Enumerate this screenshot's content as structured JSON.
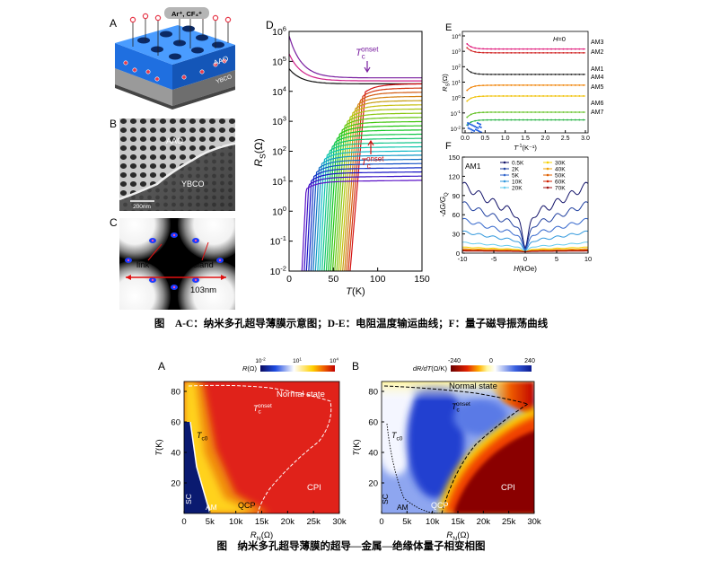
{
  "figure1": {
    "panel_a": {
      "label": "A",
      "ions": "Ar⁺, CF₄⁺",
      "aao": "AAO",
      "ybco": "YBCO"
    },
    "panel_b": {
      "label": "B",
      "aao": "AAO",
      "ybco": "YBCO",
      "scale_bar": "200nm"
    },
    "panel_c": {
      "label": "C",
      "link": "link",
      "island": "island",
      "period": "103nm"
    },
    "panel_d": {
      "label": "D",
      "y_ticks": [
        {
          "base": "10",
          "exp": "6"
        },
        {
          "base": "10",
          "exp": "5"
        },
        {
          "base": "10",
          "exp": "4"
        },
        {
          "base": "10",
          "exp": "3"
        },
        {
          "base": "10",
          "exp": "2"
        },
        {
          "base": "10",
          "exp": "1"
        },
        {
          "base": "10",
          "exp": "0"
        },
        {
          "base": "10",
          "exp": "-1"
        },
        {
          "base": "10",
          "exp": "-2"
        }
      ],
      "x_ticks": [
        "0",
        "50",
        "100",
        "150"
      ],
      "x_label": {
        "main": "T",
        "unit": "(K)"
      },
      "y_label": {
        "main": "R",
        "sub": "S",
        "unit": "(Ω)"
      },
      "tc_onset_upper": {
        "main": "T",
        "sub": "c",
        "sup": "onset"
      },
      "tc_onset_lower": {
        "main": "T",
        "sub": "c",
        "sup": "onset"
      }
    },
    "panel_e": {
      "label": "E",
      "field": {
        "main": "H",
        "unit": "=0"
      },
      "samples": [
        "AM3",
        "AM2",
        "AM1",
        "AM4",
        "AM5",
        "AM6",
        "AM7"
      ],
      "y_ticks": [
        {
          "base": "10",
          "exp": "4"
        },
        {
          "base": "10",
          "exp": "3"
        },
        {
          "base": "10",
          "exp": "2"
        },
        {
          "base": "10",
          "exp": "1"
        },
        {
          "base": "10",
          "exp": "0"
        },
        {
          "base": "10",
          "exp": "-1"
        },
        {
          "base": "10",
          "exp": "-2"
        }
      ],
      "x_ticks": [
        "0.0",
        "0.5",
        "1.0",
        "1.5",
        "2.0",
        "2.5",
        "3.0"
      ],
      "x_label": {
        "main": "T",
        "sup": "-1",
        "unit": "(K⁻¹)"
      },
      "y_label": {
        "main": "R",
        "sub": "S",
        "unit": "(Ω)"
      }
    },
    "panel_f": {
      "label": "F",
      "sample": "AM1",
      "legend": [
        "0.5K",
        "2K",
        "5K",
        "10K",
        "20K",
        "30K",
        "40K",
        "50K",
        "60K",
        "70K"
      ],
      "y_ticks": [
        "0",
        "30",
        "60",
        "90",
        "120",
        "150"
      ],
      "x_ticks": [
        "-10",
        "-5",
        "0",
        "5",
        "10"
      ],
      "x_label": {
        "main": "H",
        "unit": "(kOe)"
      },
      "y_label": {
        "main": "-ΔG/G",
        "sub": "Q"
      }
    }
  },
  "caption1": "图　A-C：纳米多孔超导薄膜示意图；D-E：电阻温度输运曲线；F：量子磁导振荡曲线",
  "figure2": {
    "panel_a": {
      "label": "A",
      "colorbar_title": {
        "main": "R",
        "unit": "(Ω)"
      },
      "colorbar_ticks": [
        {
          "base": "10",
          "exp": "-2"
        },
        {
          "base": "10",
          "exp": "1"
        },
        {
          "base": "10",
          "exp": "4"
        }
      ],
      "normal_state": "Normal state",
      "tc_onset": {
        "main": "T",
        "sub": "c",
        "sup": "onset"
      },
      "tc0": {
        "main": "T",
        "sub": "c0"
      },
      "sc": "SC",
      "am": "AM",
      "qcp": "QCP",
      "cpi": "CPI",
      "y_ticks": [
        "20",
        "40",
        "60",
        "80"
      ],
      "x_ticks": [
        "0",
        "5k",
        "10k",
        "15k",
        "20k",
        "25k",
        "30k"
      ],
      "x_label": {
        "main": "R",
        "sub": "N",
        "unit": "(Ω)"
      },
      "y_label": {
        "main": "T",
        "unit": "(K)"
      }
    },
    "panel_b": {
      "label": "B",
      "colorbar_title": {
        "main": "dR/dT",
        "unit": "(Ω/K)"
      },
      "colorbar_ticks": [
        "-240",
        "0",
        "240"
      ],
      "normal_state": "Normal state",
      "tc_onset": {
        "main": "T",
        "sub": "c",
        "sup": "onset"
      },
      "tc0": {
        "main": "T",
        "sub": "c0"
      },
      "sc": "SC",
      "am": "AM",
      "qcp": "QCP",
      "cpi": "CPI",
      "y_ticks": [
        "20",
        "40",
        "60",
        "80"
      ],
      "x_ticks": [
        "0",
        "5k",
        "10k",
        "15k",
        "20k",
        "25k",
        "30k"
      ],
      "x_label": {
        "main": "R",
        "sub": "N",
        "unit": "(Ω)"
      },
      "y_label": {
        "main": "T",
        "unit": "(K)"
      }
    }
  },
  "caption2": "图　纳米多孔超导薄膜的超导—金属—绝缘体量子相变相图"
}
